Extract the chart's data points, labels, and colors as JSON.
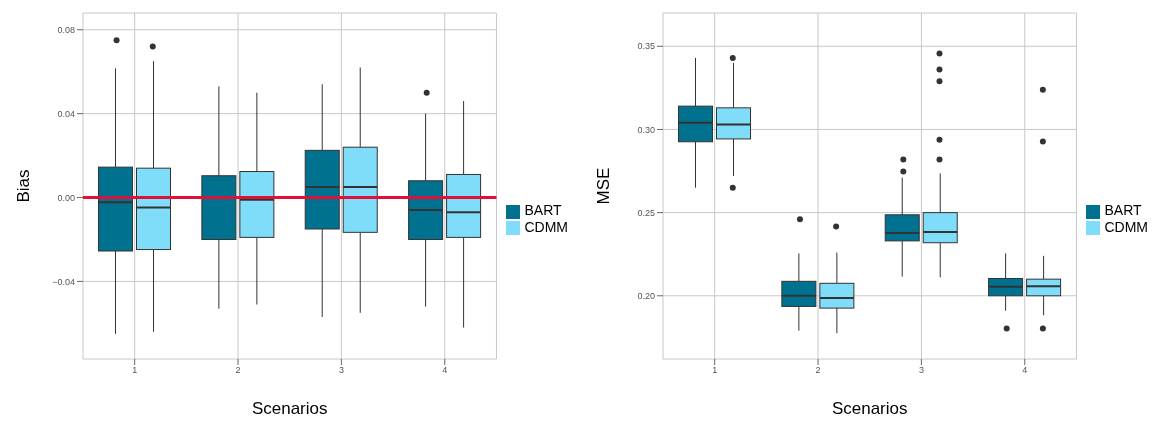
{
  "chart_data": [
    {
      "type": "box",
      "categories": [
        "1",
        "2",
        "3",
        "4"
      ],
      "xlabel": "Scenarios",
      "ylabel": "Bias",
      "ylim": [
        -0.077,
        0.088
      ],
      "yticks": [
        {
          "value": -0.04,
          "label": "−0.04"
        },
        {
          "value": 0,
          "label": "0.00"
        },
        0.04,
        0.08
      ],
      "grid": true,
      "legend": "right",
      "ref_lines": [
        {
          "axis": "y",
          "value": 0,
          "color": "#e0103a"
        }
      ],
      "series": [
        {
          "name": "BART",
          "color": "#00728f",
          "boxes": [
            {
              "low": -0.065,
              "q1": -0.0255,
              "median": -0.0022,
              "q3": 0.0145,
              "high": 0.0616,
              "outliers": [
                0.075
              ]
            },
            {
              "low": -0.053,
              "q1": -0.02,
              "median": 0,
              "q3": 0.0104,
              "high": 0.053
            },
            {
              "low": -0.057,
              "q1": -0.015,
              "median": 0.005,
              "q3": 0.0225,
              "high": 0.054
            },
            {
              "low": -0.052,
              "q1": -0.02,
              "median": -0.006,
              "q3": 0.008,
              "high": 0.04,
              "outliers": [
                0.05
              ]
            }
          ]
        },
        {
          "name": "CDMM",
          "color": "#80ddfa",
          "boxes": [
            {
              "low": -0.064,
              "q1": -0.0248,
              "median": -0.0048,
              "q3": 0.014,
              "high": 0.065,
              "outliers": [
                0.072
              ]
            },
            {
              "low": -0.051,
              "q1": -0.019,
              "median": -0.001,
              "q3": 0.0124,
              "high": 0.05
            },
            {
              "low": -0.055,
              "q1": -0.0166,
              "median": 0.005,
              "q3": 0.024,
              "high": 0.062
            },
            {
              "low": -0.062,
              "q1": -0.019,
              "median": -0.007,
              "q3": 0.011,
              "high": 0.046
            }
          ]
        }
      ]
    },
    {
      "type": "box",
      "categories": [
        "1",
        "2",
        "3",
        "4"
      ],
      "xlabel": "Scenarios",
      "ylabel": "MSE",
      "ylim": [
        0.162,
        0.37
      ],
      "yticks": [
        {
          "value": 0.2,
          "label": "0.20"
        },
        0.25,
        {
          "value": 0.3,
          "label": "0.30"
        },
        0.35
      ],
      "grid": true,
      "legend": "right",
      "series": [
        {
          "name": "BART",
          "color": "#00728f",
          "boxes": [
            {
              "low": 0.265,
              "q1": 0.2926,
              "median": 0.304,
              "q3": 0.314,
              "high": 0.343
            },
            {
              "low": 0.179,
              "q1": 0.1936,
              "median": 0.2,
              "q3": 0.2087,
              "high": 0.2255,
              "outliers": [
                0.246
              ]
            },
            {
              "low": 0.2115,
              "q1": 0.233,
              "median": 0.2377,
              "q3": 0.2487,
              "high": 0.271,
              "outliers": [
                0.2819,
                0.2747
              ]
            },
            {
              "low": 0.191,
              "q1": 0.2,
              "median": 0.2055,
              "q3": 0.2104,
              "high": 0.2255,
              "outliers": [
                0.1804
              ]
            }
          ]
        },
        {
          "name": "CDMM",
          "color": "#80ddfa",
          "boxes": [
            {
              "low": 0.272,
              "q1": 0.2943,
              "median": 0.303,
              "q3": 0.313,
              "high": 0.34,
              "outliers": [
                0.343,
                0.265
              ]
            },
            {
              "low": 0.1775,
              "q1": 0.1926,
              "median": 0.1987,
              "q3": 0.2075,
              "high": 0.226,
              "outliers": [
                0.2417
              ]
            },
            {
              "low": 0.2111,
              "q1": 0.2319,
              "median": 0.2383,
              "q3": 0.25,
              "high": 0.2736,
              "outliers": [
                0.3457,
                0.336,
                0.3289,
                0.2938,
                0.2819
              ]
            },
            {
              "low": 0.1883,
              "q1": 0.2,
              "median": 0.2058,
              "q3": 0.21,
              "high": 0.224,
              "outliers": [
                0.1804,
                0.2928,
                0.3238
              ]
            }
          ]
        }
      ]
    }
  ]
}
